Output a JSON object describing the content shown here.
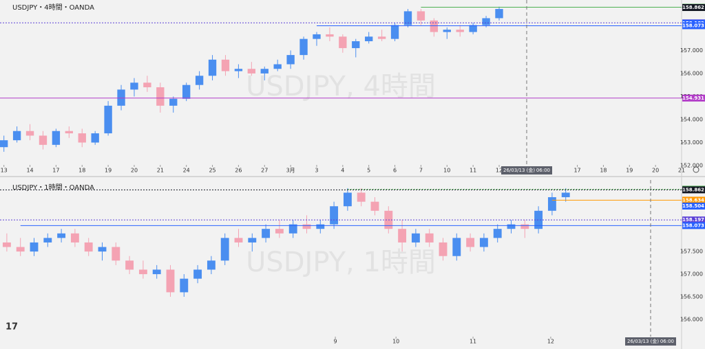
{
  "chart_data": [
    {
      "type": "candlestick",
      "title": "USDJPY・4時間・OANDA",
      "watermark": "USDJPY, 4時間",
      "x": [
        0,
        1,
        2,
        3,
        4,
        5,
        6,
        7,
        8,
        9,
        10,
        11,
        12,
        13,
        14,
        15,
        16,
        17,
        18,
        19,
        20,
        21,
        22,
        23,
        24,
        25,
        26,
        27,
        28,
        29,
        30,
        31,
        32,
        33,
        34,
        35,
        36,
        37,
        38
      ],
      "open": [
        152.8,
        153.1,
        153.5,
        153.3,
        152.9,
        153.5,
        153.4,
        153.0,
        153.4,
        154.6,
        155.3,
        155.6,
        155.4,
        154.6,
        154.9,
        155.5,
        155.9,
        156.6,
        156.1,
        156.2,
        156.0,
        156.2,
        156.4,
        156.8,
        157.5,
        157.7,
        157.6,
        157.1,
        157.4,
        157.6,
        157.5,
        158.1,
        158.7,
        158.3,
        157.8,
        157.9,
        157.8,
        158.1,
        158.4
      ],
      "high": [
        153.3,
        153.7,
        153.8,
        153.5,
        153.6,
        153.7,
        153.6,
        153.5,
        154.8,
        155.5,
        155.8,
        155.9,
        155.6,
        155.0,
        155.6,
        156.1,
        156.8,
        156.8,
        156.4,
        156.5,
        156.3,
        156.6,
        157.0,
        157.6,
        157.8,
        158.0,
        157.7,
        157.5,
        157.8,
        157.9,
        158.2,
        158.8,
        158.8,
        158.4,
        158.0,
        158.1,
        158.2,
        158.5,
        158.9
      ],
      "low": [
        152.6,
        153.0,
        153.1,
        152.7,
        152.8,
        153.2,
        152.8,
        152.9,
        153.3,
        154.4,
        155.0,
        155.2,
        154.3,
        154.3,
        154.8,
        155.3,
        155.7,
        155.9,
        155.8,
        155.9,
        155.7,
        156.1,
        156.2,
        156.6,
        157.2,
        157.4,
        156.9,
        156.7,
        157.3,
        157.4,
        157.4,
        158.0,
        158.1,
        157.6,
        157.5,
        157.6,
        157.7,
        158.0,
        158.3
      ],
      "close": [
        153.1,
        153.5,
        153.3,
        152.9,
        153.5,
        153.4,
        153.0,
        153.4,
        154.6,
        155.3,
        155.6,
        155.4,
        154.6,
        154.9,
        155.5,
        155.9,
        156.6,
        156.1,
        156.2,
        156.0,
        156.2,
        156.4,
        156.8,
        157.5,
        157.7,
        157.6,
        157.1,
        157.4,
        157.6,
        157.5,
        158.1,
        158.7,
        158.3,
        157.8,
        157.9,
        157.8,
        158.1,
        158.4,
        158.8
      ],
      "up_color": "#4a8ef0",
      "down_color": "#f4a3b3",
      "xlim": [
        -0.3,
        52
      ],
      "ylim": [
        152.03,
        159.19
      ],
      "xticks": [
        {
          "value": 0,
          "label": "13"
        },
        {
          "value": 2,
          "label": "14"
        },
        {
          "value": 4,
          "label": "17"
        },
        {
          "value": 6,
          "label": "18"
        },
        {
          "value": 8,
          "label": "19"
        },
        {
          "value": 10,
          "label": "20"
        },
        {
          "value": 12,
          "label": "21"
        },
        {
          "value": 14,
          "label": "24"
        },
        {
          "value": 16,
          "label": "25"
        },
        {
          "value": 18,
          "label": "26"
        },
        {
          "value": 20,
          "label": "27"
        },
        {
          "value": 22,
          "label": "3月"
        },
        {
          "value": 24,
          "label": "3"
        },
        {
          "value": 26,
          "label": "4"
        },
        {
          "value": 28,
          "label": "5"
        },
        {
          "value": 30,
          "label": "6"
        },
        {
          "value": 32,
          "label": "7"
        },
        {
          "value": 34,
          "label": "10"
        },
        {
          "value": 36,
          "label": "11"
        },
        {
          "value": 38,
          "label": "12"
        },
        {
          "value": 44,
          "label": "17"
        },
        {
          "value": 46,
          "label": "18"
        },
        {
          "value": 48,
          "label": "19"
        },
        {
          "value": 50,
          "label": "20"
        },
        {
          "value": 52,
          "label": "21"
        }
      ],
      "yticks": [
        {
          "value": 152,
          "label": "152.000"
        },
        {
          "value": 153,
          "label": "153.000"
        },
        {
          "value": 154,
          "label": "154.000"
        },
        {
          "value": 155,
          "label": "155.000"
        },
        {
          "value": 156,
          "label": "156.000"
        },
        {
          "value": 157,
          "label": "157.000"
        }
      ],
      "price_lines": [
        {
          "value": 158.876,
          "color": "#4caf50",
          "style": "solid",
          "start": 32
        },
        {
          "value": 158.862,
          "color": "#131722",
          "style": "none",
          "start": 0
        },
        {
          "value": 158.197,
          "color": "#5b3fd6",
          "style": "dotted",
          "start": -0.3
        },
        {
          "value": 158.182,
          "color": "#2962ff",
          "style": "none",
          "start": 0
        },
        {
          "value": 158.073,
          "color": "#2962ff",
          "style": "solid",
          "start": 24
        },
        {
          "value": 154.931,
          "color": "#b23cc8",
          "style": "solid",
          "start": -0.3
        }
      ],
      "time_marker": {
        "date": "26/03/13 (金)",
        "time": "06:00"
      }
    },
    {
      "type": "candlestick",
      "title": "USDJPY・1時間・OANDA",
      "watermark": "USDJPY, 1時間",
      "x": [
        1,
        3,
        5,
        7,
        9,
        11,
        13,
        15,
        17,
        19,
        21,
        23,
        25,
        27,
        29,
        31,
        33,
        35,
        37,
        39,
        41,
        43,
        45,
        47,
        49,
        51,
        53,
        55,
        57,
        59,
        61,
        63,
        65,
        67,
        69,
        71,
        73,
        75,
        77,
        79,
        81,
        83
      ],
      "open": [
        157.7,
        157.6,
        157.5,
        157.7,
        157.8,
        157.9,
        157.7,
        157.5,
        157.6,
        157.3,
        157.1,
        157.0,
        157.1,
        156.6,
        156.9,
        157.1,
        157.3,
        157.8,
        157.7,
        157.8,
        158.0,
        157.9,
        158.1,
        158.0,
        158.1,
        158.5,
        158.8,
        158.6,
        158.4,
        158.0,
        157.7,
        157.9,
        157.7,
        157.4,
        157.8,
        157.6,
        157.8,
        158.0,
        158.1,
        158.0,
        158.4,
        158.7
      ],
      "high": [
        157.9,
        157.8,
        157.8,
        157.9,
        158.0,
        158.0,
        157.8,
        157.7,
        157.7,
        157.4,
        157.3,
        157.2,
        157.2,
        157.0,
        157.2,
        157.4,
        157.9,
        158.0,
        157.9,
        158.1,
        158.2,
        158.2,
        158.3,
        158.2,
        158.6,
        158.9,
        158.9,
        158.7,
        158.5,
        158.2,
        158.0,
        158.0,
        157.8,
        157.9,
        157.9,
        157.9,
        158.1,
        158.2,
        158.2,
        158.5,
        158.8,
        158.9
      ],
      "low": [
        157.5,
        157.4,
        157.4,
        157.6,
        157.7,
        157.6,
        157.4,
        157.3,
        157.2,
        157.0,
        156.9,
        156.9,
        156.5,
        156.5,
        156.8,
        157.0,
        157.2,
        157.6,
        157.5,
        157.7,
        157.8,
        157.8,
        157.9,
        157.9,
        158.0,
        158.4,
        158.5,
        158.3,
        157.9,
        157.5,
        157.6,
        157.6,
        157.3,
        157.3,
        157.5,
        157.5,
        157.7,
        157.9,
        157.8,
        157.9,
        158.3,
        158.6
      ],
      "close": [
        157.6,
        157.5,
        157.7,
        157.8,
        157.9,
        157.7,
        157.5,
        157.6,
        157.3,
        157.1,
        157.0,
        157.1,
        156.6,
        156.9,
        157.1,
        157.3,
        157.8,
        157.7,
        157.8,
        158.0,
        157.9,
        158.1,
        158.0,
        158.1,
        158.5,
        158.8,
        158.6,
        158.4,
        158.0,
        157.7,
        157.9,
        157.7,
        157.4,
        157.8,
        157.6,
        157.8,
        158.0,
        158.1,
        158.0,
        158.4,
        158.7,
        158.8
      ],
      "up_color": "#4a8ef0",
      "down_color": "#f4a3b3",
      "xlim": [
        0,
        100
      ],
      "ylim": [
        155.62,
        159.08
      ],
      "xticks": [
        {
          "value": 49.2,
          "label": "9"
        },
        {
          "value": 58.1,
          "label": "10"
        },
        {
          "value": 69.4,
          "label": "11"
        },
        {
          "value": 80.8,
          "label": "12"
        }
      ],
      "yticks": [
        {
          "value": 156,
          "label": "156.000"
        },
        {
          "value": 156.5,
          "label": "156.500"
        },
        {
          "value": 157,
          "label": "157.000"
        },
        {
          "value": 157.5,
          "label": "157.500"
        }
      ],
      "price_lines": [
        {
          "value": 158.876,
          "color": "#4caf50",
          "style": "dotted",
          "start": 51
        },
        {
          "value": 158.862,
          "color": "#131722",
          "style": "dotted",
          "start": 0
        },
        {
          "value": 158.634,
          "color": "#ff9800",
          "style": "solid",
          "start": 81
        },
        {
          "value": 158.504,
          "color": "#2962ff",
          "style": "none",
          "start": 0
        },
        {
          "value": 158.197,
          "color": "#5b3fd6",
          "style": "dotted",
          "start": 0
        },
        {
          "value": 158.073,
          "color": "#2962ff",
          "style": "solid",
          "start": 3
        }
      ],
      "time_marker": {
        "date": "26/03/13 (金)",
        "time": "06:00"
      }
    }
  ]
}
